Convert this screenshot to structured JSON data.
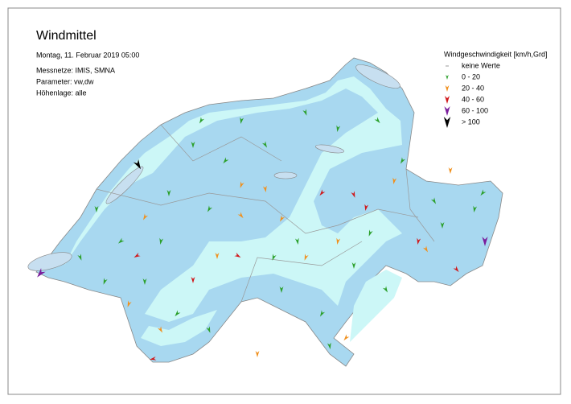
{
  "header": {
    "title": "Windmittel",
    "date": "Montag, 11. Februar 2019 05:00",
    "networks": "Messnetze: IMIS, SMNA",
    "parameter": "Parameter: vw,dw",
    "altitude": "Höhenlage: alle"
  },
  "legend": {
    "title": "Windgeschwindigkeit [km/h,Grd]",
    "items": [
      {
        "label": "keine Werte",
        "color": "#9a9a9a"
      },
      {
        "label": "0 - 20",
        "color": "#2ca02c"
      },
      {
        "label": "20 - 40",
        "color": "#f0901e"
      },
      {
        "label": "40 - 60",
        "color": "#d0181b"
      },
      {
        "label": "60 - 100",
        "color": "#7a1e9c"
      },
      {
        "label": "> 100",
        "color": "#000000"
      }
    ]
  }
}
